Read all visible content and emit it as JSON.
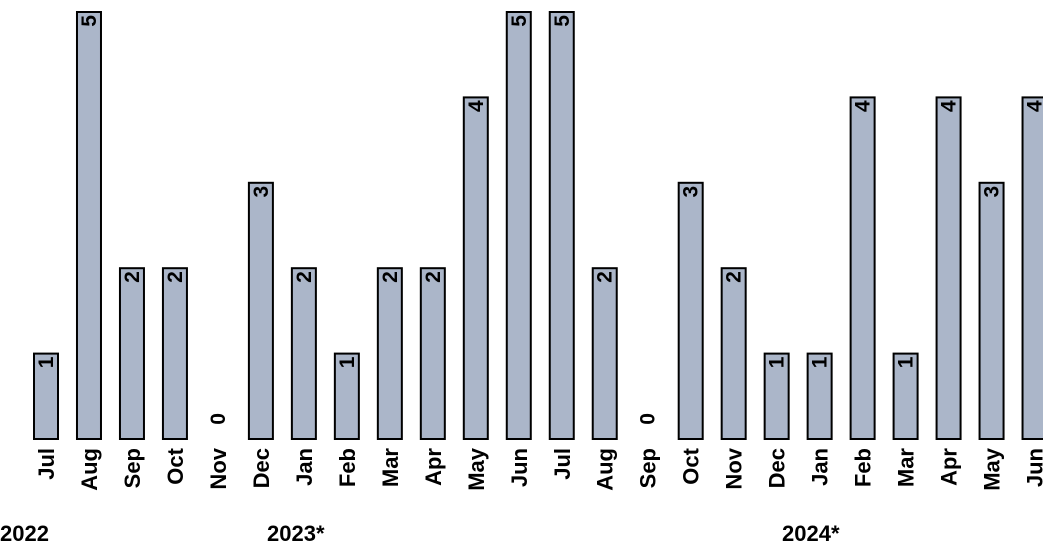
{
  "chart_data": {
    "type": "bar",
    "categories": [
      "Jul",
      "Aug",
      "Sep",
      "Oct",
      "Nov",
      "Dec",
      "Jan",
      "Feb",
      "Mar",
      "Apr",
      "May",
      "Jun",
      "Jul",
      "Aug",
      "Sep",
      "Oct",
      "Nov",
      "Dec",
      "Jan",
      "Feb",
      "Mar",
      "Apr",
      "May",
      "Jun"
    ],
    "values": [
      1,
      5,
      2,
      2,
      0,
      3,
      2,
      1,
      2,
      2,
      4,
      5,
      5,
      2,
      0,
      3,
      2,
      1,
      1,
      4,
      1,
      4,
      3,
      4
    ],
    "years": [
      {
        "label": "2022",
        "start_index": 0
      },
      {
        "label": "2023*",
        "start_index": 6
      },
      {
        "label": "2024*",
        "start_index": 18
      }
    ],
    "ylim": [
      0,
      5
    ],
    "bar_color": "#abb6c9",
    "grid": false,
    "legend": "none"
  }
}
